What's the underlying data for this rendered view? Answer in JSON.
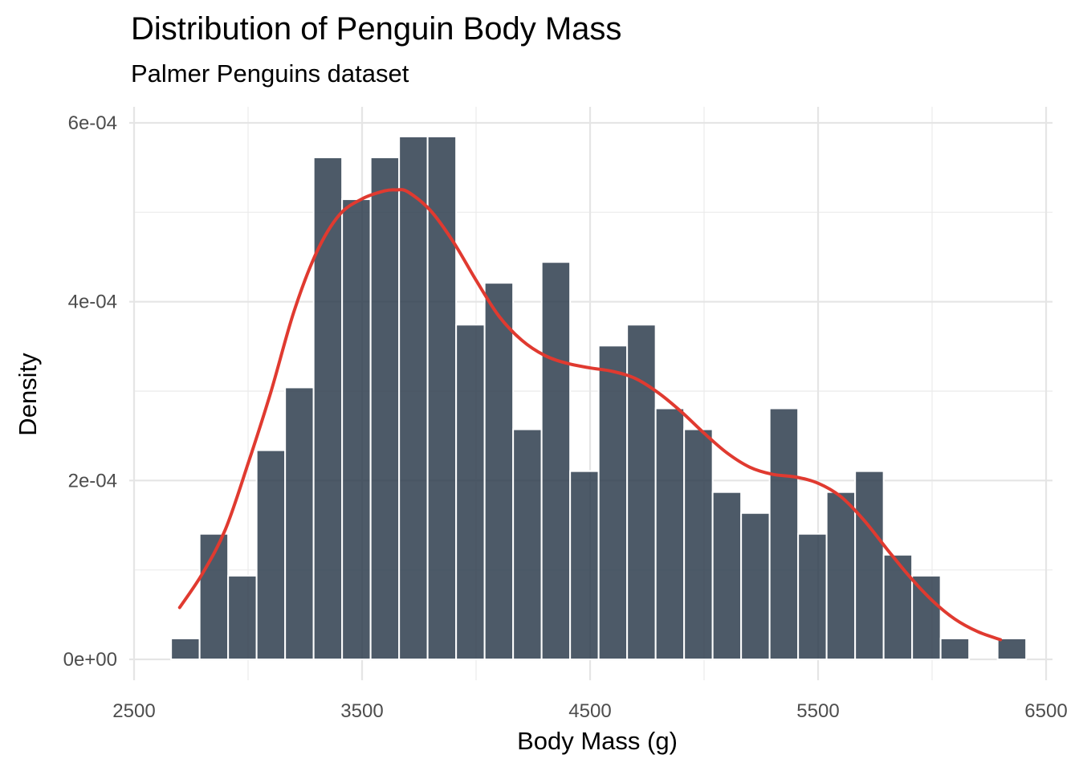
{
  "chart_data": {
    "type": "bar",
    "title": "Distribution of Penguin Body Mass",
    "subtitle": "Palmer Penguins dataset",
    "xlabel": "Body Mass (g)",
    "ylabel": "Density",
    "xlim": [
      2500,
      6500
    ],
    "ylim": [
      0,
      0.0006
    ],
    "x_ticks": [
      2500,
      3500,
      4500,
      5500,
      6500
    ],
    "x_tick_labels": [
      "2500",
      "3500",
      "4500",
      "5500",
      "6500"
    ],
    "y_ticks": [
      0,
      0.0002,
      0.0004,
      0.0006
    ],
    "y_tick_labels": [
      "0e+00",
      "2e-04",
      "4e-04",
      "6e-04"
    ],
    "grid": true,
    "bin_width": 125,
    "histogram": {
      "bin_centers": [
        2725,
        2850,
        2975,
        3100,
        3225,
        3350,
        3475,
        3600,
        3725,
        3850,
        3975,
        4100,
        4225,
        4350,
        4475,
        4600,
        4725,
        4850,
        4975,
        5100,
        5225,
        5350,
        5475,
        5600,
        5725,
        5850,
        5975,
        6100,
        6225,
        6350
      ],
      "density": [
        2.34e-05,
        0.0001404,
        9.36e-05,
        0.0002339,
        0.0003041,
        0.0005614,
        0.0005146,
        0.0005614,
        0.0005848,
        0.0005848,
        0.0003743,
        0.0004211,
        0.0002573,
        0.0004444,
        0.0002105,
        0.0003509,
        0.0003743,
        0.0002807,
        0.0002573,
        0.0001871,
        0.0001637,
        0.0002807,
        0.0001404,
        0.0001871,
        0.0002105,
        0.000117,
        9.36e-05,
        2.34e-05,
        0,
        2.34e-05
      ],
      "color": "#2e3d4e"
    },
    "density_curve": {
      "x": [
        2700,
        2800,
        2900,
        3000,
        3100,
        3200,
        3300,
        3400,
        3500,
        3600,
        3650,
        3700,
        3800,
        3900,
        4000,
        4100,
        4200,
        4300,
        4400,
        4500,
        4600,
        4700,
        4800,
        4900,
        5000,
        5100,
        5200,
        5300,
        5400,
        5500,
        5600,
        5700,
        5800,
        5900,
        6000,
        6100,
        6200,
        6300
      ],
      "y": [
        5.8e-05,
        9.6e-05,
        0.000145,
        0.000219,
        0.000299,
        0.000388,
        0.000455,
        0.000497,
        0.000515,
        0.000524,
        0.000525,
        0.000523,
        0.000502,
        0.000467,
        0.000424,
        0.000384,
        0.000357,
        0.00034,
        0.000331,
        0.000326,
        0.000322,
        0.000314,
        0.000298,
        0.000277,
        0.000253,
        0.000231,
        0.000215,
        0.000207,
        0.000204,
        0.000197,
        0.000182,
        0.000156,
        0.000124,
        9.3e-05,
        6.6e-05,
        4.5e-05,
        3.1e-05,
        2.2e-05
      ],
      "color": "#e03a30"
    }
  }
}
